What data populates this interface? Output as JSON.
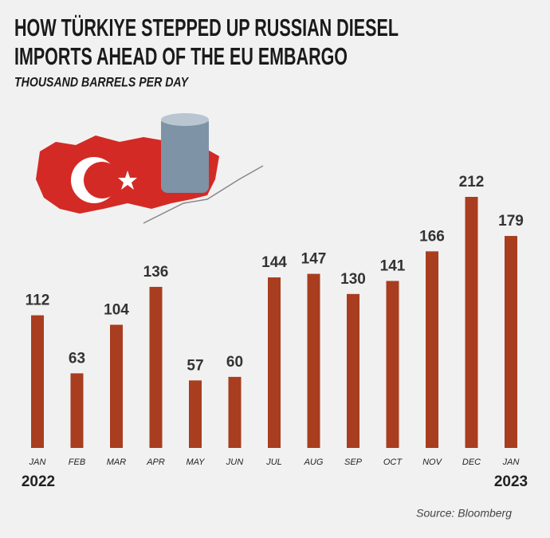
{
  "chart_data": {
    "type": "bar",
    "title": [
      "HOW TÜRKIYE STEPPED UP RUSSIAN DIESEL",
      "IMPORTS AHEAD OF THE EU EMBARGO"
    ],
    "subtitle": "THOUSAND BARRELS PER DAY",
    "categories": [
      "JAN",
      "FEB",
      "MAR",
      "APR",
      "MAY",
      "JUN",
      "JUL",
      "AUG",
      "SEP",
      "OCT",
      "NOV",
      "DEC",
      "JAN"
    ],
    "values": [
      112,
      63,
      104,
      136,
      57,
      60,
      144,
      147,
      130,
      141,
      166,
      212,
      179
    ],
    "color": "#a83d1f",
    "annotations": [
      "2022",
      "2023"
    ],
    "source": "Source: Bloomberg"
  }
}
